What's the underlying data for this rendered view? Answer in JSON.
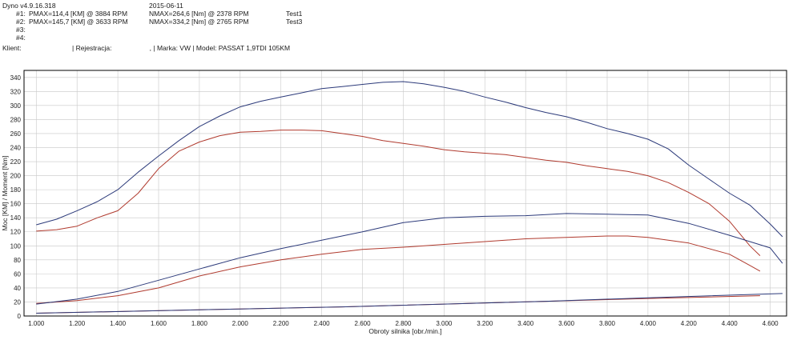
{
  "header": {
    "app": "Dyno v4.9.16.318",
    "date": "2015-06-11",
    "runs": [
      {
        "id": "#1:",
        "pmax": "PMAX=114,4 [KM] @ 3884 RPM",
        "nmax": "NMAX=264,6 [Nm] @ 2378 RPM",
        "name": "Test1"
      },
      {
        "id": "#2:",
        "pmax": "PMAX=145,7 [KM] @ 3633 RPM",
        "nmax": "NMAX=334,2 [Nm] @ 2765 RPM",
        "name": "Test3"
      },
      {
        "id": "#3:",
        "pmax": "",
        "nmax": "",
        "name": ""
      },
      {
        "id": "#4:",
        "pmax": "",
        "nmax": "",
        "name": ""
      }
    ],
    "client_label": "Klient:",
    "client_rest": "| Rejestracja:                    , | Marka: VW | Model: PASSAT 1,9TDI 105KM"
  },
  "colors": {
    "run1": "#b03a2e",
    "run2": "#2c3a7a",
    "frame": "#000000",
    "grid": "#c8c8c8"
  },
  "chart_data": {
    "type": "line",
    "xlabel": "Obroty silnika [obr./min.]",
    "ylabel": "Moc [KM] / Moment [Nm]",
    "xlim": [
      940,
      4680
    ],
    "ylim": [
      0,
      350
    ],
    "xticks": [
      "1.000",
      "1.200",
      "1.400",
      "1.600",
      "1.800",
      "2.000",
      "2.200",
      "2.400",
      "2.600",
      "2.800",
      "3.000",
      "3.200",
      "3.400",
      "3.600",
      "3.800",
      "4.000",
      "4.200",
      "4.400",
      "4.600"
    ],
    "yticks": [
      0,
      20,
      40,
      60,
      80,
      100,
      120,
      140,
      160,
      180,
      200,
      220,
      240,
      260,
      280,
      300,
      320,
      340
    ],
    "series": [
      {
        "name": "Test1",
        "run": 1,
        "kind": "torque",
        "color": "#b03a2e",
        "points": [
          [
            1000,
            121
          ],
          [
            1100,
            123
          ],
          [
            1200,
            128
          ],
          [
            1300,
            140
          ],
          [
            1400,
            150
          ],
          [
            1500,
            175
          ],
          [
            1600,
            210
          ],
          [
            1700,
            235
          ],
          [
            1800,
            248
          ],
          [
            1900,
            257
          ],
          [
            2000,
            262
          ],
          [
            2100,
            263
          ],
          [
            2200,
            265
          ],
          [
            2300,
            265
          ],
          [
            2400,
            264
          ],
          [
            2500,
            260
          ],
          [
            2600,
            256
          ],
          [
            2700,
            250
          ],
          [
            2800,
            246
          ],
          [
            2900,
            242
          ],
          [
            3000,
            237
          ],
          [
            3100,
            234
          ],
          [
            3200,
            232
          ],
          [
            3300,
            230
          ],
          [
            3400,
            226
          ],
          [
            3500,
            222
          ],
          [
            3600,
            219
          ],
          [
            3700,
            214
          ],
          [
            3800,
            210
          ],
          [
            3900,
            206
          ],
          [
            4000,
            200
          ],
          [
            4100,
            190
          ],
          [
            4200,
            176
          ],
          [
            4300,
            160
          ],
          [
            4400,
            135
          ],
          [
            4500,
            100
          ],
          [
            4550,
            86
          ]
        ]
      },
      {
        "name": "Test3",
        "run": 2,
        "kind": "torque",
        "color": "#2c3a7a",
        "points": [
          [
            1000,
            130
          ],
          [
            1100,
            138
          ],
          [
            1200,
            150
          ],
          [
            1300,
            163
          ],
          [
            1400,
            180
          ],
          [
            1500,
            205
          ],
          [
            1600,
            228
          ],
          [
            1700,
            250
          ],
          [
            1800,
            270
          ],
          [
            1900,
            285
          ],
          [
            2000,
            298
          ],
          [
            2100,
            306
          ],
          [
            2200,
            312
          ],
          [
            2300,
            318
          ],
          [
            2400,
            324
          ],
          [
            2500,
            327
          ],
          [
            2600,
            330
          ],
          [
            2700,
            333
          ],
          [
            2800,
            334
          ],
          [
            2900,
            331
          ],
          [
            3000,
            326
          ],
          [
            3100,
            320
          ],
          [
            3200,
            312
          ],
          [
            3300,
            305
          ],
          [
            3400,
            297
          ],
          [
            3500,
            290
          ],
          [
            3600,
            284
          ],
          [
            3700,
            276
          ],
          [
            3800,
            267
          ],
          [
            3900,
            260
          ],
          [
            4000,
            252
          ],
          [
            4100,
            238
          ],
          [
            4200,
            215
          ],
          [
            4300,
            195
          ],
          [
            4400,
            175
          ],
          [
            4500,
            158
          ],
          [
            4600,
            131
          ],
          [
            4660,
            113
          ]
        ]
      },
      {
        "name": "Test1",
        "run": 1,
        "kind": "power",
        "color": "#b03a2e",
        "points": [
          [
            1000,
            18
          ],
          [
            1200,
            22
          ],
          [
            1400,
            29
          ],
          [
            1600,
            40
          ],
          [
            1800,
            57
          ],
          [
            2000,
            70
          ],
          [
            2200,
            80
          ],
          [
            2400,
            88
          ],
          [
            2600,
            95
          ],
          [
            2800,
            98
          ],
          [
            3000,
            102
          ],
          [
            3200,
            106
          ],
          [
            3400,
            110
          ],
          [
            3600,
            112
          ],
          [
            3800,
            114
          ],
          [
            3900,
            114
          ],
          [
            4000,
            112
          ],
          [
            4200,
            104
          ],
          [
            4400,
            88
          ],
          [
            4500,
            72
          ],
          [
            4550,
            64
          ]
        ]
      },
      {
        "name": "Test3",
        "run": 2,
        "kind": "power",
        "color": "#2c3a7a",
        "points": [
          [
            1000,
            17
          ],
          [
            1200,
            24
          ],
          [
            1400,
            35
          ],
          [
            1600,
            51
          ],
          [
            1800,
            67
          ],
          [
            2000,
            83
          ],
          [
            2200,
            96
          ],
          [
            2400,
            108
          ],
          [
            2600,
            120
          ],
          [
            2800,
            133
          ],
          [
            3000,
            140
          ],
          [
            3200,
            142
          ],
          [
            3400,
            143
          ],
          [
            3600,
            146
          ],
          [
            3800,
            145
          ],
          [
            4000,
            144
          ],
          [
            4200,
            132
          ],
          [
            4400,
            115
          ],
          [
            4600,
            97
          ],
          [
            4660,
            75
          ]
        ]
      },
      {
        "name": "Test1",
        "run": 1,
        "kind": "aux",
        "color": "#b03a2e",
        "points": [
          [
            1000,
            4
          ],
          [
            1500,
            7
          ],
          [
            2000,
            10
          ],
          [
            2500,
            13
          ],
          [
            3000,
            17
          ],
          [
            3500,
            21
          ],
          [
            4000,
            25
          ],
          [
            4550,
            29
          ]
        ]
      },
      {
        "name": "Test3",
        "run": 2,
        "kind": "aux",
        "color": "#2c3a7a",
        "points": [
          [
            1000,
            4
          ],
          [
            1500,
            7
          ],
          [
            2000,
            10
          ],
          [
            2500,
            13
          ],
          [
            3000,
            17
          ],
          [
            3500,
            21
          ],
          [
            4000,
            26
          ],
          [
            4660,
            32
          ]
        ]
      }
    ]
  }
}
